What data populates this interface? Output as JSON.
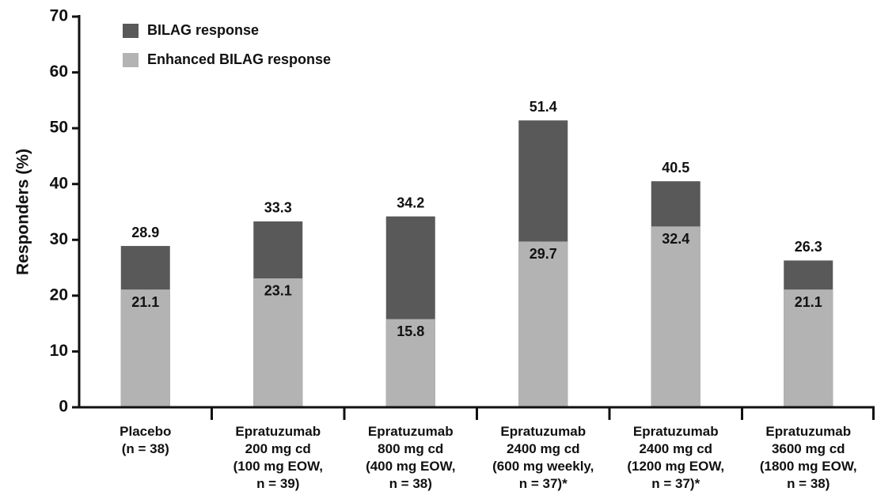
{
  "chart_data": {
    "type": "bar",
    "barmode": "overlay",
    "y_label": "Responders (%)",
    "categories": [
      "Placebo\n(n = 38)",
      "Epratuzumab\n200 mg cd\n(100 mg EOW,\nn = 39)",
      "Epratuzumab\n800 mg cd\n(400 mg EOW,\nn = 38)",
      "Epratuzumab\n2400 mg cd\n(600 mg weekly,\nn = 37)*",
      "Epratuzumab\n2400 mg cd\n(1200 mg EOW,\nn = 37)*",
      "Epratuzumab\n3600 mg cd\n(1800 mg EOW,\nn = 38)"
    ],
    "series": [
      {
        "name": "BILAG response",
        "color": "#595959",
        "values": [
          28.9,
          33.3,
          34.2,
          51.4,
          40.5,
          26.3
        ]
      },
      {
        "name": "Enhanced BILAG response",
        "color": "#b3b3b3",
        "values": [
          21.1,
          23.1,
          15.8,
          29.7,
          32.4,
          21.1
        ]
      }
    ],
    "ylim": [
      0,
      70
    ],
    "yticks": [
      0,
      10,
      20,
      30,
      40,
      50,
      60,
      70
    ],
    "legend": "upper left"
  }
}
